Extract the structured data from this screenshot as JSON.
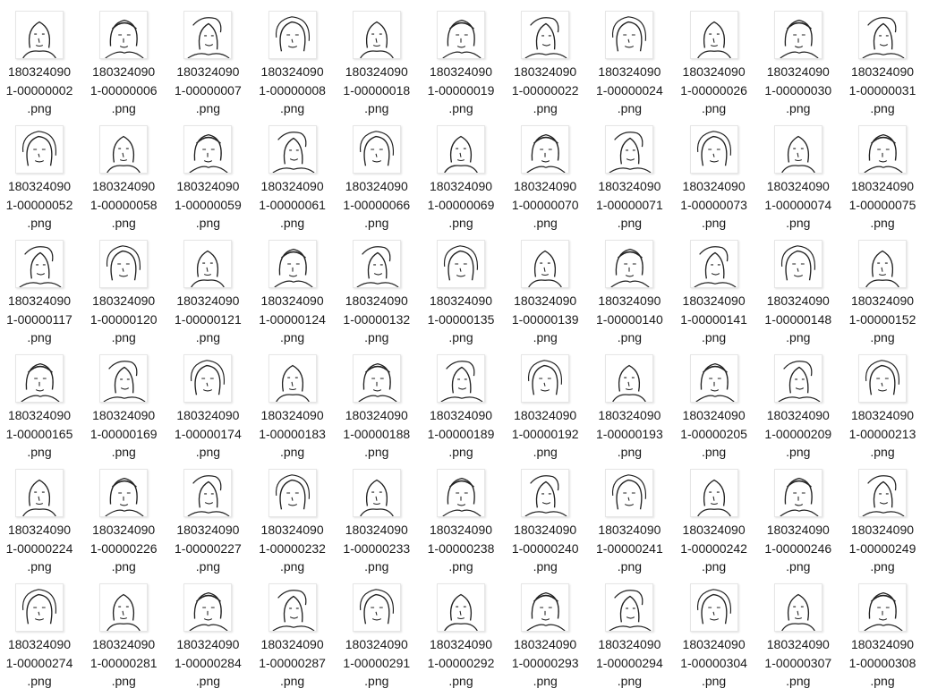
{
  "view": {
    "icon": "sketch-portrait-thumbnail-icon",
    "files": [
      {
        "l1": "180324090",
        "l2": "1-00000002",
        "l3": ".png"
      },
      {
        "l1": "180324090",
        "l2": "1-00000006",
        "l3": ".png"
      },
      {
        "l1": "180324090",
        "l2": "1-00000007",
        "l3": ".png"
      },
      {
        "l1": "180324090",
        "l2": "1-00000008",
        "l3": ".png"
      },
      {
        "l1": "180324090",
        "l2": "1-00000018",
        "l3": ".png"
      },
      {
        "l1": "180324090",
        "l2": "1-00000019",
        "l3": ".png"
      },
      {
        "l1": "180324090",
        "l2": "1-00000022",
        "l3": ".png"
      },
      {
        "l1": "180324090",
        "l2": "1-00000024",
        "l3": ".png"
      },
      {
        "l1": "180324090",
        "l2": "1-00000026",
        "l3": ".png"
      },
      {
        "l1": "180324090",
        "l2": "1-00000030",
        "l3": ".png"
      },
      {
        "l1": "180324090",
        "l2": "1-00000031",
        "l3": ".png"
      },
      {
        "l1": "180324090",
        "l2": "1-00000052",
        "l3": ".png"
      },
      {
        "l1": "180324090",
        "l2": "1-00000058",
        "l3": ".png"
      },
      {
        "l1": "180324090",
        "l2": "1-00000059",
        "l3": ".png"
      },
      {
        "l1": "180324090",
        "l2": "1-00000061",
        "l3": ".png"
      },
      {
        "l1": "180324090",
        "l2": "1-00000066",
        "l3": ".png"
      },
      {
        "l1": "180324090",
        "l2": "1-00000069",
        "l3": ".png"
      },
      {
        "l1": "180324090",
        "l2": "1-00000070",
        "l3": ".png"
      },
      {
        "l1": "180324090",
        "l2": "1-00000071",
        "l3": ".png"
      },
      {
        "l1": "180324090",
        "l2": "1-00000073",
        "l3": ".png"
      },
      {
        "l1": "180324090",
        "l2": "1-00000074",
        "l3": ".png"
      },
      {
        "l1": "180324090",
        "l2": "1-00000075",
        "l3": ".png"
      },
      {
        "l1": "180324090",
        "l2": "1-00000117",
        "l3": ".png"
      },
      {
        "l1": "180324090",
        "l2": "1-00000120",
        "l3": ".png"
      },
      {
        "l1": "180324090",
        "l2": "1-00000121",
        "l3": ".png"
      },
      {
        "l1": "180324090",
        "l2": "1-00000124",
        "l3": ".png"
      },
      {
        "l1": "180324090",
        "l2": "1-00000132",
        "l3": ".png"
      },
      {
        "l1": "180324090",
        "l2": "1-00000135",
        "l3": ".png"
      },
      {
        "l1": "180324090",
        "l2": "1-00000139",
        "l3": ".png"
      },
      {
        "l1": "180324090",
        "l2": "1-00000140",
        "l3": ".png"
      },
      {
        "l1": "180324090",
        "l2": "1-00000141",
        "l3": ".png"
      },
      {
        "l1": "180324090",
        "l2": "1-00000148",
        "l3": ".png"
      },
      {
        "l1": "180324090",
        "l2": "1-00000152",
        "l3": ".png"
      },
      {
        "l1": "180324090",
        "l2": "1-00000165",
        "l3": ".png"
      },
      {
        "l1": "180324090",
        "l2": "1-00000169",
        "l3": ".png"
      },
      {
        "l1": "180324090",
        "l2": "1-00000174",
        "l3": ".png"
      },
      {
        "l1": "180324090",
        "l2": "1-00000183",
        "l3": ".png"
      },
      {
        "l1": "180324090",
        "l2": "1-00000188",
        "l3": ".png"
      },
      {
        "l1": "180324090",
        "l2": "1-00000189",
        "l3": ".png"
      },
      {
        "l1": "180324090",
        "l2": "1-00000192",
        "l3": ".png"
      },
      {
        "l1": "180324090",
        "l2": "1-00000193",
        "l3": ".png"
      },
      {
        "l1": "180324090",
        "l2": "1-00000205",
        "l3": ".png"
      },
      {
        "l1": "180324090",
        "l2": "1-00000209",
        "l3": ".png"
      },
      {
        "l1": "180324090",
        "l2": "1-00000213",
        "l3": ".png"
      },
      {
        "l1": "180324090",
        "l2": "1-00000224",
        "l3": ".png"
      },
      {
        "l1": "180324090",
        "l2": "1-00000226",
        "l3": ".png"
      },
      {
        "l1": "180324090",
        "l2": "1-00000227",
        "l3": ".png"
      },
      {
        "l1": "180324090",
        "l2": "1-00000232",
        "l3": ".png"
      },
      {
        "l1": "180324090",
        "l2": "1-00000233",
        "l3": ".png"
      },
      {
        "l1": "180324090",
        "l2": "1-00000238",
        "l3": ".png"
      },
      {
        "l1": "180324090",
        "l2": "1-00000240",
        "l3": ".png"
      },
      {
        "l1": "180324090",
        "l2": "1-00000241",
        "l3": ".png"
      },
      {
        "l1": "180324090",
        "l2": "1-00000242",
        "l3": ".png"
      },
      {
        "l1": "180324090",
        "l2": "1-00000246",
        "l3": ".png"
      },
      {
        "l1": "180324090",
        "l2": "1-00000249",
        "l3": ".png"
      },
      {
        "l1": "180324090",
        "l2": "1-00000274",
        "l3": ".png"
      },
      {
        "l1": "180324090",
        "l2": "1-00000281",
        "l3": ".png"
      },
      {
        "l1": "180324090",
        "l2": "1-00000284",
        "l3": ".png"
      },
      {
        "l1": "180324090",
        "l2": "1-00000287",
        "l3": ".png"
      },
      {
        "l1": "180324090",
        "l2": "1-00000291",
        "l3": ".png"
      },
      {
        "l1": "180324090",
        "l2": "1-00000292",
        "l3": ".png"
      },
      {
        "l1": "180324090",
        "l2": "1-00000293",
        "l3": ".png"
      },
      {
        "l1": "180324090",
        "l2": "1-00000294",
        "l3": ".png"
      },
      {
        "l1": "180324090",
        "l2": "1-00000304",
        "l3": ".png"
      },
      {
        "l1": "180324090",
        "l2": "1-00000307",
        "l3": ".png"
      },
      {
        "l1": "180324090",
        "l2": "1-00000308",
        "l3": ".png"
      }
    ]
  }
}
